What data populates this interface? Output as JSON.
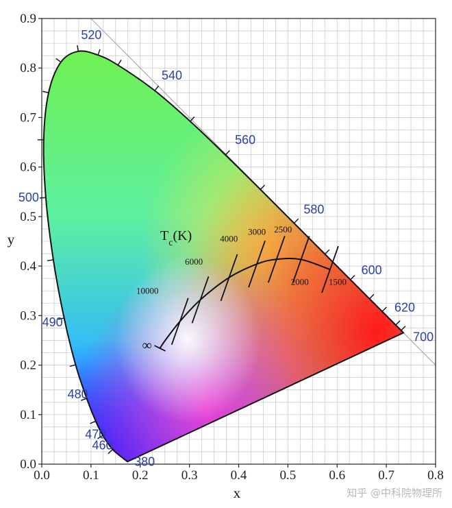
{
  "chart_data": {
    "type": "scatter",
    "xlabel": "x",
    "ylabel": "y",
    "xlim": [
      0.0,
      0.8
    ],
    "ylim": [
      0.0,
      0.9
    ],
    "x_ticks": [
      "0.0",
      "0.1",
      "0.2",
      "0.3",
      "0.4",
      "0.5",
      "0.6",
      "0.7",
      "0.8"
    ],
    "y_ticks": [
      "0.0",
      "0.1",
      "0.2",
      "0.3",
      "0.4",
      "0.5",
      "0.6",
      "0.7",
      "0.8",
      "0.9"
    ],
    "grid": true,
    "spectral_locus": [
      {
        "nm": 380,
        "x": 0.1741,
        "y": 0.005
      },
      {
        "nm": 460,
        "x": 0.144,
        "y": 0.0297
      },
      {
        "nm": 470,
        "x": 0.1241,
        "y": 0.0578
      },
      {
        "nm": 475,
        "x": 0.1096,
        "y": 0.0868
      },
      {
        "nm": 480,
        "x": 0.0913,
        "y": 0.1327
      },
      {
        "nm": 485,
        "x": 0.0687,
        "y": 0.2007
      },
      {
        "nm": 490,
        "x": 0.0454,
        "y": 0.295
      },
      {
        "nm": 495,
        "x": 0.0235,
        "y": 0.4127
      },
      {
        "nm": 500,
        "x": 0.0082,
        "y": 0.5384
      },
      {
        "nm": 505,
        "x": 0.0039,
        "y": 0.6548
      },
      {
        "nm": 510,
        "x": 0.0139,
        "y": 0.7502
      },
      {
        "nm": 515,
        "x": 0.0389,
        "y": 0.812
      },
      {
        "nm": 520,
        "x": 0.0743,
        "y": 0.8338
      },
      {
        "nm": 525,
        "x": 0.1142,
        "y": 0.8262
      },
      {
        "nm": 530,
        "x": 0.1547,
        "y": 0.8059
      },
      {
        "nm": 540,
        "x": 0.2296,
        "y": 0.7543
      },
      {
        "nm": 550,
        "x": 0.3016,
        "y": 0.6923
      },
      {
        "nm": 560,
        "x": 0.3731,
        "y": 0.6245
      },
      {
        "nm": 570,
        "x": 0.4441,
        "y": 0.5547
      },
      {
        "nm": 580,
        "x": 0.5125,
        "y": 0.4866
      },
      {
        "nm": 590,
        "x": 0.5752,
        "y": 0.4242
      },
      {
        "nm": 600,
        "x": 0.627,
        "y": 0.3725
      },
      {
        "nm": 610,
        "x": 0.6658,
        "y": 0.334
      },
      {
        "nm": 620,
        "x": 0.6915,
        "y": 0.3083
      },
      {
        "nm": 640,
        "x": 0.7191,
        "y": 0.2809
      },
      {
        "nm": 660,
        "x": 0.73,
        "y": 0.27
      },
      {
        "nm": 700,
        "x": 0.7347,
        "y": 0.2653
      }
    ],
    "wavelength_labels": [
      {
        "text": "380",
        "nm": 380
      },
      {
        "text": "460",
        "nm": 460
      },
      {
        "text": "470",
        "nm": 470
      },
      {
        "text": "480",
        "nm": 480
      },
      {
        "text": "490",
        "nm": 490
      },
      {
        "text": "500",
        "nm": 500
      },
      {
        "text": "520",
        "nm": 520
      },
      {
        "text": "540",
        "nm": 540
      },
      {
        "text": "560",
        "nm": 560
      },
      {
        "text": "580",
        "nm": 580
      },
      {
        "text": "600",
        "nm": 600
      },
      {
        "text": "620",
        "nm": 620
      },
      {
        "text": "700",
        "nm": 700
      }
    ],
    "planckian_locus": {
      "label": "Tc(K)",
      "label_main": "T",
      "label_sub": "c",
      "label_tail": "(K)",
      "infinity_label": "∞",
      "points": [
        {
          "x": 0.24,
          "y": 0.234
        },
        {
          "x": 0.2524,
          "y": 0.2522
        },
        {
          "x": 0.2807,
          "y": 0.2883
        },
        {
          "x": 0.3221,
          "y": 0.3318
        },
        {
          "x": 0.3805,
          "y": 0.3768
        },
        {
          "x": 0.4369,
          "y": 0.4041
        },
        {
          "x": 0.4769,
          "y": 0.4137
        },
        {
          "x": 0.5267,
          "y": 0.4133
        },
        {
          "x": 0.5857,
          "y": 0.3931
        }
      ],
      "isotherms": [
        {
          "label": "10000",
          "x": 0.2807,
          "y": 0.2883,
          "label_x": 0.192,
          "label_y": 0.344
        },
        {
          "label": "6000",
          "x": 0.3221,
          "y": 0.3318,
          "label_x": 0.291,
          "label_y": 0.403
        },
        {
          "label": "4000",
          "x": 0.3805,
          "y": 0.3768,
          "label_x": 0.362,
          "label_y": 0.449
        },
        {
          "label": "3000",
          "x": 0.4369,
          "y": 0.4041,
          "label_x": 0.419,
          "label_y": 0.463
        },
        {
          "label": "2500",
          "x": 0.4769,
          "y": 0.4137,
          "label_x": 0.472,
          "label_y": 0.468
        },
        {
          "label": "2000",
          "x": 0.5267,
          "y": 0.4133,
          "label_x": 0.506,
          "label_y": 0.362
        },
        {
          "label": "1500",
          "x": 0.5857,
          "y": 0.3931,
          "label_x": 0.583,
          "label_y": 0.362
        }
      ]
    }
  },
  "watermark": "知乎 @中科院物理所",
  "colors": {
    "axis": "#222222",
    "grid": "#cccccc",
    "wavelength_label": "#2a3fae",
    "locus": "#111111"
  }
}
